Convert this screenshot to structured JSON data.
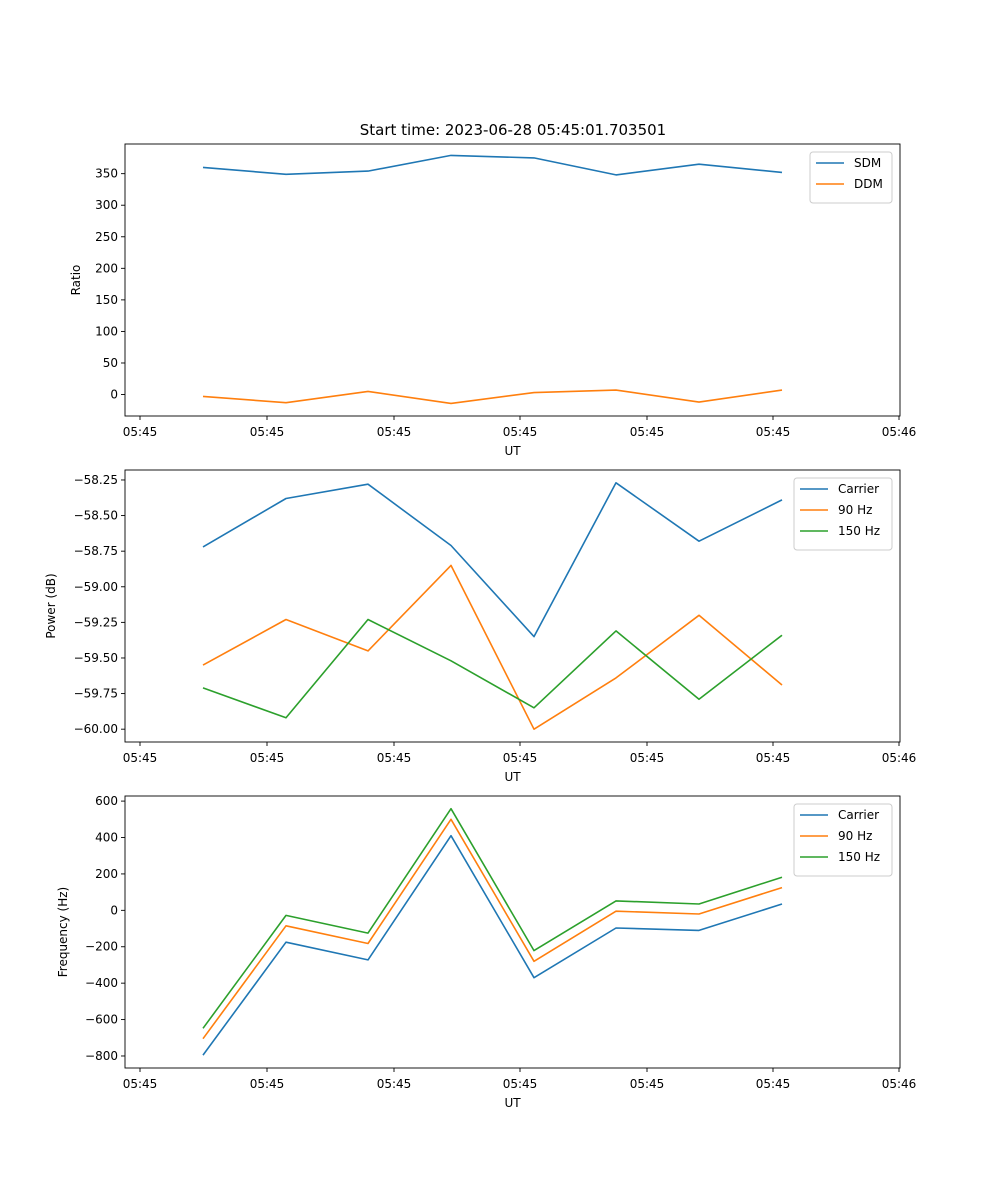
{
  "figure": {
    "title": "Start time: 2023-06-28 05:45:01.703501"
  },
  "chart_data": [
    {
      "type": "line",
      "xlabel": "UT",
      "ylabel": "Ratio",
      "x_tick_labels": [
        "05:45",
        "05:45",
        "05:45",
        "05:45",
        "05:45",
        "05:45",
        "05:46"
      ],
      "ylim": [
        -34,
        397
      ],
      "y_ticks": [
        0,
        50,
        100,
        150,
        200,
        250,
        300,
        350
      ],
      "legend_position": "top-right",
      "series": [
        {
          "name": "SDM",
          "color": "#1f77b4",
          "values": [
            360,
            349,
            354,
            379,
            375,
            348,
            365,
            352
          ]
        },
        {
          "name": "DDM",
          "color": "#ff7f0e",
          "values": [
            -3,
            -13,
            5,
            -14,
            3,
            7,
            -12,
            7
          ]
        }
      ]
    },
    {
      "type": "line",
      "xlabel": "UT",
      "ylabel": "Power (dB)",
      "x_tick_labels": [
        "05:45",
        "05:45",
        "05:45",
        "05:45",
        "05:45",
        "05:45",
        "05:46"
      ],
      "ylim": [
        -60.09,
        -58.18
      ],
      "y_ticks": [
        -60.0,
        -59.75,
        -59.5,
        -59.25,
        -59.0,
        -58.75,
        -58.5,
        -58.25
      ],
      "y_tick_labels": [
        "−60.00",
        "−59.75",
        "−59.50",
        "−59.25",
        "−59.00",
        "−58.75",
        "−58.50",
        "−58.25"
      ],
      "legend_position": "top-right",
      "series": [
        {
          "name": "Carrier",
          "color": "#1f77b4",
          "values": [
            -58.72,
            -58.38,
            -58.28,
            -58.71,
            -59.35,
            -58.27,
            -58.68,
            -58.39
          ]
        },
        {
          "name": "90 Hz",
          "color": "#ff7f0e",
          "values": [
            -59.55,
            -59.23,
            -59.45,
            -58.85,
            -60.0,
            -59.64,
            -59.2,
            -59.69
          ]
        },
        {
          "name": "150 Hz",
          "color": "#2ca02c",
          "values": [
            -59.71,
            -59.92,
            -59.23,
            -59.52,
            -59.85,
            -59.31,
            -59.79,
            -59.34
          ]
        }
      ]
    },
    {
      "type": "line",
      "xlabel": "UT",
      "ylabel": "Frequency (Hz)",
      "x_tick_labels": [
        "05:45",
        "05:45",
        "05:45",
        "05:45",
        "05:45",
        "05:45",
        "05:46"
      ],
      "ylim": [
        -866,
        628
      ],
      "y_ticks": [
        -800,
        -600,
        -400,
        -200,
        0,
        200,
        400,
        600
      ],
      "y_tick_labels": [
        "−800",
        "−600",
        "−400",
        "−200",
        "0",
        "200",
        "400",
        "600"
      ],
      "legend_position": "top-right",
      "series": [
        {
          "name": "Carrier",
          "color": "#1f77b4",
          "values": [
            -795,
            -175,
            -272,
            410,
            -370,
            -97,
            -110,
            35
          ]
        },
        {
          "name": "90 Hz",
          "color": "#ff7f0e",
          "values": [
            -705,
            -85,
            -182,
            500,
            -280,
            -5,
            -20,
            125
          ]
        },
        {
          "name": "150 Hz",
          "color": "#2ca02c",
          "values": [
            -648,
            -28,
            -125,
            558,
            -221,
            52,
            35,
            182
          ]
        }
      ]
    }
  ]
}
